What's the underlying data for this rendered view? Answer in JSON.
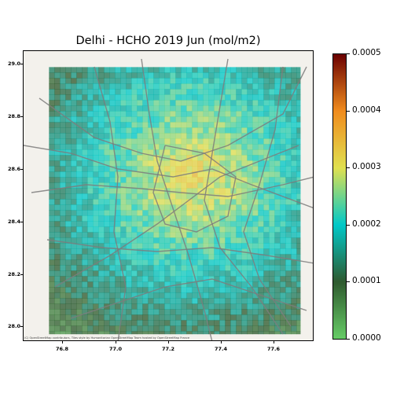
{
  "title": "Delhi - HCHO 2019 Jun (mol/m2)",
  "x_ticks": [
    "76.8",
    "77.0",
    "77.2",
    "77.4",
    "77.6"
  ],
  "y_ticks": [
    "29.0",
    "28.8",
    "28.6",
    "28.4",
    "28.2",
    "28.0"
  ],
  "colorbar": {
    "ticks": [
      "0.0005",
      "0.0004",
      "0.0003",
      "0.0002",
      "0.0001",
      "0.0000"
    ],
    "colors": [
      "#66cc66",
      "#2f5a2f",
      "#00c8c8",
      "#e0e050",
      "#f08c1e",
      "#6a0000"
    ]
  },
  "attribution": "(C) OpenStreetMap contributors, Tiles style by Humanitarian OpenStreetMap Team hosted by OpenStreetMap France",
  "map": {
    "lon_range": [
      76.75,
      77.78
    ],
    "lat_range": [
      27.96,
      29.05
    ],
    "data_extent": {
      "lon": [
        76.84,
        77.73
      ],
      "lat": [
        27.99,
        28.99
      ]
    },
    "value_range": [
      0.0,
      0.0005
    ]
  }
}
